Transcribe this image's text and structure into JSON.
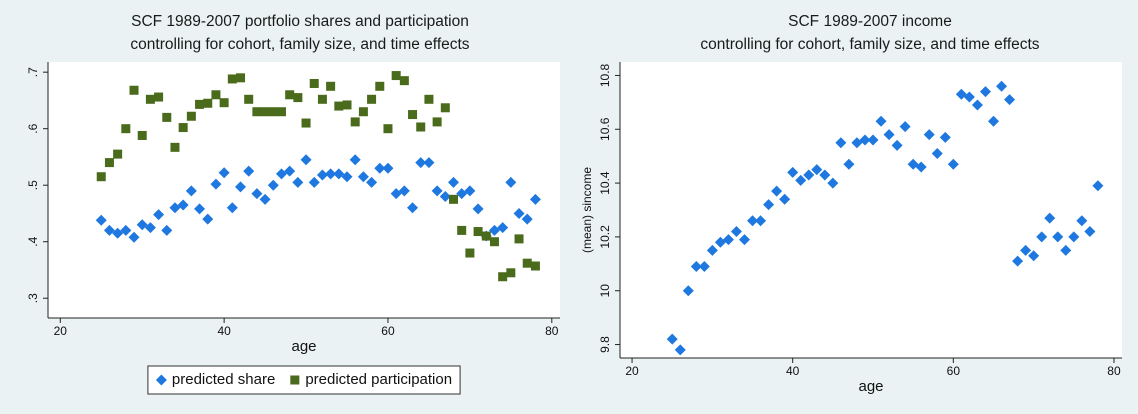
{
  "chart_data": [
    {
      "type": "scatter",
      "title": "SCF 1989-2007 portfolio shares and participation",
      "subtitle": "controlling for cohort, family size, and time effects",
      "xlabel": "age",
      "xlim": [
        18.5,
        81
      ],
      "xticks": [
        20,
        40,
        60,
        80
      ],
      "ylim": [
        0.265,
        0.718
      ],
      "yticks": [
        {
          "value": 0.3,
          "label": ".3"
        },
        {
          "value": 0.4,
          "label": ".4"
        },
        {
          "value": 0.5,
          "label": ".5"
        },
        {
          "value": 0.6,
          "label": ".6"
        },
        {
          "value": 0.7,
          "label": ".7"
        }
      ],
      "legend": "bottom",
      "series": [
        {
          "name": "predicted share",
          "color": "#1f78e0",
          "marker": "diamond",
          "x": [
            25,
            26,
            27,
            28,
            29,
            30,
            31,
            32,
            33,
            34,
            35,
            36,
            37,
            38,
            39,
            40,
            41,
            42,
            43,
            44,
            45,
            46,
            47,
            48,
            49,
            50,
            51,
            52,
            53,
            54,
            55,
            56,
            57,
            58,
            59,
            60,
            61,
            62,
            63,
            64,
            65,
            66,
            67,
            68,
            69,
            70,
            71,
            72,
            73,
            74,
            75,
            76,
            77,
            78
          ],
          "values": [
            0.438,
            0.42,
            0.415,
            0.42,
            0.408,
            0.43,
            0.425,
            0.448,
            0.42,
            0.46,
            0.465,
            0.49,
            0.458,
            0.44,
            0.502,
            0.522,
            0.46,
            0.497,
            0.525,
            0.485,
            0.475,
            0.5,
            0.52,
            0.525,
            0.505,
            0.545,
            0.505,
            0.518,
            0.52,
            0.52,
            0.515,
            0.545,
            0.515,
            0.505,
            0.53,
            0.53,
            0.485,
            0.49,
            0.46,
            0.54,
            0.54,
            0.49,
            0.48,
            0.505,
            0.485,
            0.49,
            0.458,
            0.41,
            0.42,
            0.425,
            0.505,
            0.45,
            0.44,
            0.475
          ]
        },
        {
          "name": "predicted participation",
          "color": "#4a6a1c",
          "marker": "square",
          "x": [
            25,
            26,
            27,
            28,
            29,
            30,
            31,
            32,
            33,
            34,
            35,
            36,
            37,
            38,
            39,
            40,
            41,
            42,
            43,
            44,
            45,
            46,
            47,
            48,
            49,
            50,
            51,
            52,
            53,
            54,
            55,
            56,
            57,
            58,
            59,
            60,
            61,
            62,
            63,
            64,
            65,
            66,
            67,
            68,
            69,
            70,
            71,
            72,
            73,
            74,
            75,
            76,
            77,
            78
          ],
          "values": [
            0.515,
            0.54,
            0.555,
            0.6,
            0.668,
            0.588,
            0.652,
            0.656,
            0.62,
            0.567,
            0.602,
            0.622,
            0.643,
            0.645,
            0.66,
            0.646,
            0.688,
            0.69,
            0.652,
            0.63,
            0.63,
            0.63,
            0.63,
            0.66,
            0.655,
            0.61,
            0.68,
            0.652,
            0.675,
            0.64,
            0.642,
            0.612,
            0.63,
            0.652,
            0.675,
            0.6,
            0.694,
            0.685,
            0.625,
            0.603,
            0.652,
            0.612,
            0.637,
            0.475,
            0.42,
            0.38,
            0.418,
            0.41,
            0.4,
            0.338,
            0.345,
            0.405,
            0.362,
            0.357
          ]
        }
      ]
    },
    {
      "type": "scatter",
      "title": "SCF 1989-2007 income",
      "subtitle": "controlling for cohort, family size, and time effects",
      "xlabel": "age",
      "ylabel": "(mean) sincome",
      "xlim": [
        18.5,
        81
      ],
      "xticks": [
        20,
        40,
        60,
        80
      ],
      "ylim": [
        9.75,
        10.85
      ],
      "yticks": [
        9.8,
        10,
        {
          "value": 10.2,
          "label": "10.2"
        },
        {
          "value": 10.4,
          "label": "10.4"
        },
        {
          "value": 10.6,
          "label": "10.6"
        },
        {
          "value": 10.8,
          "label": "10.8"
        }
      ],
      "series": [
        {
          "color": "#1f78e0",
          "marker": "diamond",
          "x": [
            25,
            26,
            27,
            28,
            29,
            30,
            31,
            32,
            33,
            34,
            35,
            36,
            37,
            38,
            39,
            40,
            41,
            42,
            43,
            44,
            45,
            46,
            47,
            48,
            49,
            50,
            51,
            52,
            53,
            54,
            55,
            56,
            57,
            58,
            59,
            60,
            61,
            62,
            63,
            64,
            65,
            66,
            67,
            68,
            69,
            70,
            71,
            72,
            73,
            74,
            75,
            76,
            77,
            78
          ],
          "values": [
            9.82,
            9.78,
            10.0,
            10.09,
            10.09,
            10.15,
            10.18,
            10.19,
            10.22,
            10.19,
            10.26,
            10.26,
            10.32,
            10.37,
            10.34,
            10.44,
            10.41,
            10.43,
            10.45,
            10.43,
            10.4,
            10.55,
            10.47,
            10.55,
            10.56,
            10.56,
            10.63,
            10.58,
            10.54,
            10.61,
            10.47,
            10.46,
            10.58,
            10.51,
            10.57,
            10.47,
            10.73,
            10.72,
            10.69,
            10.74,
            10.63,
            10.76,
            10.71,
            10.11,
            10.15,
            10.13,
            10.2,
            10.27,
            10.2,
            10.15,
            10.2,
            10.26,
            10.22,
            10.39
          ]
        }
      ]
    }
  ]
}
